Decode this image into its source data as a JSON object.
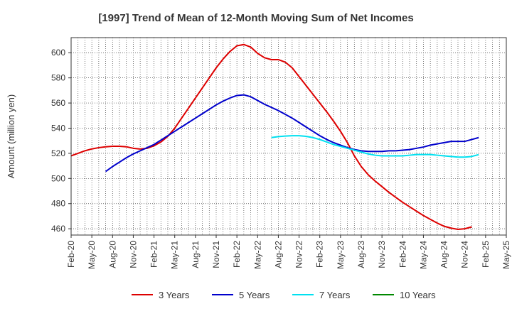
{
  "chart_data": {
    "type": "line",
    "title": "[1997]  Trend of Mean of 12-Month Moving Sum of Net Incomes",
    "xlabel": "",
    "ylabel": "Amount (million yen)",
    "ylim": [
      455,
      612
    ],
    "yticks": [
      460,
      480,
      500,
      520,
      540,
      560,
      580,
      600
    ],
    "x_tick_labels": [
      "Feb-20",
      "May-20",
      "Aug-20",
      "Nov-20",
      "Feb-21",
      "May-21",
      "Aug-21",
      "Nov-21",
      "Feb-22",
      "May-22",
      "Aug-22",
      "Nov-22",
      "Feb-23",
      "May-23",
      "Aug-23",
      "Nov-23",
      "Feb-24",
      "May-24",
      "Aug-24",
      "Nov-24",
      "Feb-25",
      "May-25"
    ],
    "grid": true,
    "legend_position": "bottom",
    "series": [
      {
        "name": "3 Years",
        "color": "#dd0000",
        "values": [
          [
            "2020-02",
            518
          ],
          [
            "2020-03",
            520
          ],
          [
            "2020-04",
            522
          ],
          [
            "2020-05",
            523.5
          ],
          [
            "2020-06",
            524.5
          ],
          [
            "2020-07",
            525.2
          ],
          [
            "2020-08",
            525.6
          ],
          [
            "2020-09",
            525.6
          ],
          [
            "2020-10",
            525.2
          ],
          [
            "2020-11",
            524
          ],
          [
            "2020-12",
            523.4
          ],
          [
            "2021-01",
            524
          ],
          [
            "2021-02",
            526
          ],
          [
            "2021-03",
            529
          ],
          [
            "2021-04",
            533.5
          ],
          [
            "2021-05",
            540
          ],
          [
            "2021-06",
            548
          ],
          [
            "2021-07",
            556
          ],
          [
            "2021-08",
            564
          ],
          [
            "2021-09",
            572
          ],
          [
            "2021-10",
            580
          ],
          [
            "2021-11",
            588
          ],
          [
            "2021-12",
            595
          ],
          [
            "2022-01",
            601
          ],
          [
            "2022-02",
            605.5
          ],
          [
            "2022-03",
            606.5
          ],
          [
            "2022-04",
            604.5
          ],
          [
            "2022-05",
            599.5
          ],
          [
            "2022-06",
            596
          ],
          [
            "2022-07",
            594.5
          ],
          [
            "2022-08",
            594.5
          ],
          [
            "2022-09",
            592.5
          ],
          [
            "2022-10",
            588
          ],
          [
            "2022-11",
            581
          ],
          [
            "2022-12",
            574
          ],
          [
            "2023-01",
            567
          ],
          [
            "2023-02",
            560
          ],
          [
            "2023-03",
            553
          ],
          [
            "2023-04",
            545.5
          ],
          [
            "2023-05",
            537.5
          ],
          [
            "2023-06",
            528.5
          ],
          [
            "2023-07",
            518
          ],
          [
            "2023-08",
            509.5
          ],
          [
            "2023-09",
            503
          ],
          [
            "2023-10",
            498
          ],
          [
            "2023-11",
            493.5
          ],
          [
            "2023-12",
            489
          ],
          [
            "2024-01",
            485
          ],
          [
            "2024-02",
            481
          ],
          [
            "2024-03",
            477.5
          ],
          [
            "2024-04",
            474
          ],
          [
            "2024-05",
            470.5
          ],
          [
            "2024-06",
            467.5
          ],
          [
            "2024-07",
            464.5
          ],
          [
            "2024-08",
            462
          ],
          [
            "2024-09",
            460.5
          ],
          [
            "2024-10",
            459.5
          ],
          [
            "2024-11",
            460
          ],
          [
            "2024-12",
            461.5
          ]
        ]
      },
      {
        "name": "5 Years",
        "color": "#0000cc",
        "values": [
          [
            "2020-07",
            505.5
          ],
          [
            "2020-08",
            509.5
          ],
          [
            "2020-09",
            513
          ],
          [
            "2020-10",
            516.5
          ],
          [
            "2020-11",
            519.5
          ],
          [
            "2020-12",
            522
          ],
          [
            "2021-01",
            524.5
          ],
          [
            "2021-02",
            527
          ],
          [
            "2021-03",
            530.5
          ],
          [
            "2021-04",
            534
          ],
          [
            "2021-05",
            537.5
          ],
          [
            "2021-06",
            541
          ],
          [
            "2021-07",
            544.5
          ],
          [
            "2021-08",
            548
          ],
          [
            "2021-09",
            551.5
          ],
          [
            "2021-10",
            555
          ],
          [
            "2021-11",
            558.5
          ],
          [
            "2021-12",
            561.5
          ],
          [
            "2022-01",
            564
          ],
          [
            "2022-02",
            566
          ],
          [
            "2022-03",
            566.5
          ],
          [
            "2022-04",
            565
          ],
          [
            "2022-05",
            562
          ],
          [
            "2022-06",
            559
          ],
          [
            "2022-07",
            556.5
          ],
          [
            "2022-08",
            554
          ],
          [
            "2022-09",
            551
          ],
          [
            "2022-10",
            548
          ],
          [
            "2022-11",
            544.5
          ],
          [
            "2022-12",
            541
          ],
          [
            "2023-01",
            537.5
          ],
          [
            "2023-02",
            534
          ],
          [
            "2023-03",
            531
          ],
          [
            "2023-04",
            528.5
          ],
          [
            "2023-05",
            526.5
          ],
          [
            "2023-06",
            524.5
          ],
          [
            "2023-07",
            523
          ],
          [
            "2023-08",
            522
          ],
          [
            "2023-09",
            521.5
          ],
          [
            "2023-10",
            521.5
          ],
          [
            "2023-11",
            521.5
          ],
          [
            "2023-12",
            522
          ],
          [
            "2024-01",
            522
          ],
          [
            "2024-02",
            522.5
          ],
          [
            "2024-03",
            523
          ],
          [
            "2024-04",
            524
          ],
          [
            "2024-05",
            525
          ],
          [
            "2024-06",
            526.5
          ],
          [
            "2024-07",
            527.5
          ],
          [
            "2024-08",
            528.5
          ],
          [
            "2024-09",
            529.5
          ],
          [
            "2024-10",
            529.5
          ],
          [
            "2024-11",
            529.5
          ],
          [
            "2024-12",
            531
          ],
          [
            "2025-01",
            532.5
          ]
        ]
      },
      {
        "name": "7 Years",
        "color": "#00e0f0",
        "values": [
          [
            "2022-07",
            532.5
          ],
          [
            "2022-08",
            533.3
          ],
          [
            "2022-09",
            533.7
          ],
          [
            "2022-10",
            534
          ],
          [
            "2022-11",
            534
          ],
          [
            "2022-12",
            533.5
          ],
          [
            "2023-01",
            532.5
          ],
          [
            "2023-02",
            531
          ],
          [
            "2023-03",
            529
          ],
          [
            "2023-04",
            527
          ],
          [
            "2023-05",
            525.5
          ],
          [
            "2023-06",
            524
          ],
          [
            "2023-07",
            522.5
          ],
          [
            "2023-08",
            521
          ],
          [
            "2023-09",
            519.5
          ],
          [
            "2023-10",
            518.5
          ],
          [
            "2023-11",
            518
          ],
          [
            "2023-12",
            518
          ],
          [
            "2024-01",
            518
          ],
          [
            "2024-02",
            518
          ],
          [
            "2024-03",
            518.5
          ],
          [
            "2024-04",
            519
          ],
          [
            "2024-05",
            519
          ],
          [
            "2024-06",
            519
          ],
          [
            "2024-07",
            518.5
          ],
          [
            "2024-08",
            518
          ],
          [
            "2024-09",
            517.5
          ],
          [
            "2024-10",
            517
          ],
          [
            "2024-11",
            517
          ],
          [
            "2024-12",
            517.5
          ],
          [
            "2025-01",
            519
          ]
        ]
      },
      {
        "name": "10 Years",
        "color": "#008800",
        "values": []
      }
    ]
  }
}
